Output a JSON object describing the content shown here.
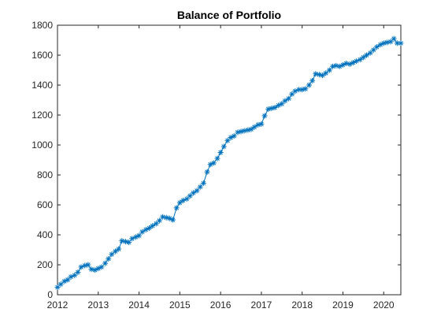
{
  "chart_data": {
    "type": "line",
    "title": "Balance of Portfolio",
    "xlabel": "",
    "ylabel": "",
    "xlim": [
      2012,
      2020.42
    ],
    "ylim": [
      0,
      1800
    ],
    "xticks": [
      2012,
      2013,
      2014,
      2015,
      2016,
      2017,
      2018,
      2019,
      2020
    ],
    "yticks": [
      0,
      200,
      400,
      600,
      800,
      1000,
      1200,
      1400,
      1600,
      1800
    ],
    "grid": false,
    "legend": "none",
    "marker": "asterisk",
    "color": "#0072BD",
    "series": [
      {
        "x": [
          2012.0,
          2012.08,
          2012.17,
          2012.25,
          2012.33,
          2012.42,
          2012.5,
          2012.58,
          2012.67,
          2012.75,
          2012.83,
          2012.92,
          2013.0,
          2013.08,
          2013.17,
          2013.25,
          2013.33,
          2013.42,
          2013.5,
          2013.58,
          2013.67,
          2013.75,
          2013.83,
          2013.92,
          2014.0,
          2014.08,
          2014.17,
          2014.25,
          2014.33,
          2014.42,
          2014.5,
          2014.58,
          2014.67,
          2014.75,
          2014.83,
          2014.92,
          2015.0,
          2015.08,
          2015.17,
          2015.25,
          2015.33,
          2015.42,
          2015.5,
          2015.58,
          2015.67,
          2015.75,
          2015.83,
          2015.92,
          2016.0,
          2016.08,
          2016.17,
          2016.25,
          2016.33,
          2016.42,
          2016.5,
          2016.58,
          2016.67,
          2016.75,
          2016.83,
          2016.92,
          2017.0,
          2017.08,
          2017.17,
          2017.25,
          2017.33,
          2017.42,
          2017.5,
          2017.58,
          2017.67,
          2017.75,
          2017.83,
          2017.92,
          2018.0,
          2018.08,
          2018.17,
          2018.25,
          2018.33,
          2018.42,
          2018.5,
          2018.58,
          2018.67,
          2018.75,
          2018.83,
          2018.92,
          2019.0,
          2019.08,
          2019.17,
          2019.25,
          2019.33,
          2019.42,
          2019.5,
          2019.58,
          2019.67,
          2019.75,
          2019.83,
          2019.92,
          2020.0,
          2020.08,
          2020.17,
          2020.25,
          2020.33,
          2020.42
        ],
        "y": [
          50,
          70,
          90,
          100,
          120,
          130,
          150,
          185,
          195,
          200,
          170,
          165,
          175,
          185,
          210,
          240,
          270,
          290,
          305,
          360,
          355,
          350,
          375,
          385,
          395,
          420,
          435,
          445,
          460,
          475,
          495,
          520,
          515,
          510,
          500,
          580,
          615,
          630,
          640,
          660,
          680,
          695,
          720,
          745,
          820,
          870,
          880,
          910,
          950,
          990,
          1030,
          1050,
          1060,
          1085,
          1090,
          1095,
          1100,
          1105,
          1120,
          1135,
          1140,
          1195,
          1240,
          1245,
          1250,
          1265,
          1275,
          1295,
          1310,
          1340,
          1360,
          1370,
          1370,
          1375,
          1400,
          1430,
          1475,
          1470,
          1465,
          1480,
          1500,
          1525,
          1530,
          1525,
          1535,
          1545,
          1540,
          1550,
          1560,
          1570,
          1585,
          1600,
          1615,
          1635,
          1655,
          1670,
          1680,
          1685,
          1690,
          1710,
          1680,
          1680
        ]
      }
    ]
  }
}
